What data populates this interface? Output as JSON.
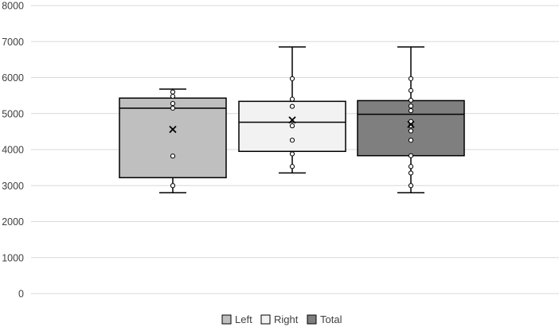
{
  "chart_data": {
    "type": "box",
    "title": "",
    "xlabel": "",
    "ylabel": "",
    "ylim": [
      0,
      8000
    ],
    "yticks": [
      0,
      1000,
      2000,
      3000,
      4000,
      5000,
      6000,
      7000,
      8000
    ],
    "grid": true,
    "legend_position": "bottom",
    "series": [
      {
        "name": "Left",
        "color": "#bfbfbf",
        "min": 2800,
        "q1": 3220,
        "median": 5150,
        "q3": 5430,
        "max": 5680,
        "mean": 4560,
        "points": [
          5600,
          5480,
          5280,
          5150,
          3820,
          3000
        ]
      },
      {
        "name": "Right",
        "color": "#f2f2f2",
        "min": 3350,
        "q1": 3950,
        "median": 4760,
        "q3": 5340,
        "max": 6850,
        "mean": 4820,
        "points": [
          5970,
          5400,
          5200,
          4660,
          4260,
          3880,
          3530
        ]
      },
      {
        "name": "Total",
        "color": "#7f7f7f",
        "min": 2800,
        "q1": 3830,
        "median": 4980,
        "q3": 5360,
        "max": 6850,
        "mean": 4700,
        "points": [
          5970,
          5640,
          5370,
          5210,
          5080,
          4780,
          4660,
          4520,
          4260,
          3830,
          3530,
          3350,
          3000
        ]
      }
    ]
  }
}
